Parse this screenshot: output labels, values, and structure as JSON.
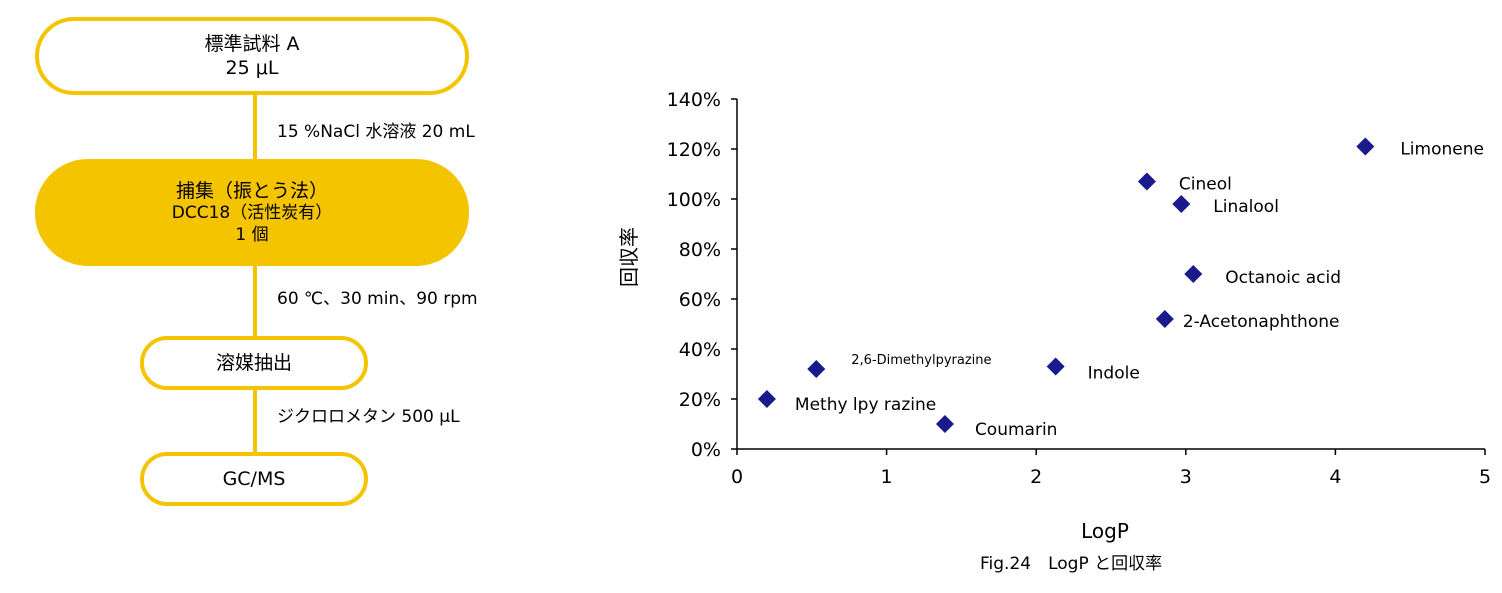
{
  "flow": {
    "step1": {
      "line1": "標準試料 A",
      "line2": "25 μL"
    },
    "cond1": "15 %NaCl 水溶液 20 mL",
    "step2": {
      "line1": "捕集（振とう法）",
      "line2": "DCC18（活性炭有）",
      "line3": "1 個"
    },
    "cond2": "60 ℃、30 min、90 rpm",
    "step3": {
      "line1": "溶媒抽出"
    },
    "cond3": "ジクロロメタン 500 μL",
    "step4": {
      "line1": "GC/MS"
    }
  },
  "colors": {
    "flow_accent": "#f5c400",
    "marker": "#1a1a8c"
  },
  "caption": "Fig.24　LogP と回収率",
  "chart_data": {
    "type": "scatter",
    "xlabel": "LogP",
    "ylabel": "回収率",
    "xlim": [
      0,
      5
    ],
    "ylim": [
      0,
      1.4
    ],
    "x_ticks": [
      "0",
      "1",
      "2",
      "3",
      "4",
      "5"
    ],
    "y_ticks": [
      "0%",
      "20%",
      "40%",
      "60%",
      "80%",
      "100%",
      "120%",
      "140%"
    ],
    "grid": false,
    "points": [
      {
        "label": "Limonene",
        "x": 4.2,
        "y": 1.21
      },
      {
        "label": "Cineol",
        "x": 2.74,
        "y": 1.07
      },
      {
        "label": "Linalool",
        "x": 2.97,
        "y": 0.98
      },
      {
        "label": "Octanoic acid",
        "x": 3.05,
        "y": 0.7
      },
      {
        "label": "2-Acetonaphthone",
        "x": 2.86,
        "y": 0.52
      },
      {
        "label": "2,6-Dimethylpyrazine",
        "x": 0.53,
        "y": 0.32
      },
      {
        "label": "Indole",
        "x": 2.13,
        "y": 0.33
      },
      {
        "label": "Methy lpy razine",
        "x": 0.2,
        "y": 0.2
      },
      {
        "label": "Coumarin",
        "x": 1.39,
        "y": 0.1
      }
    ]
  }
}
